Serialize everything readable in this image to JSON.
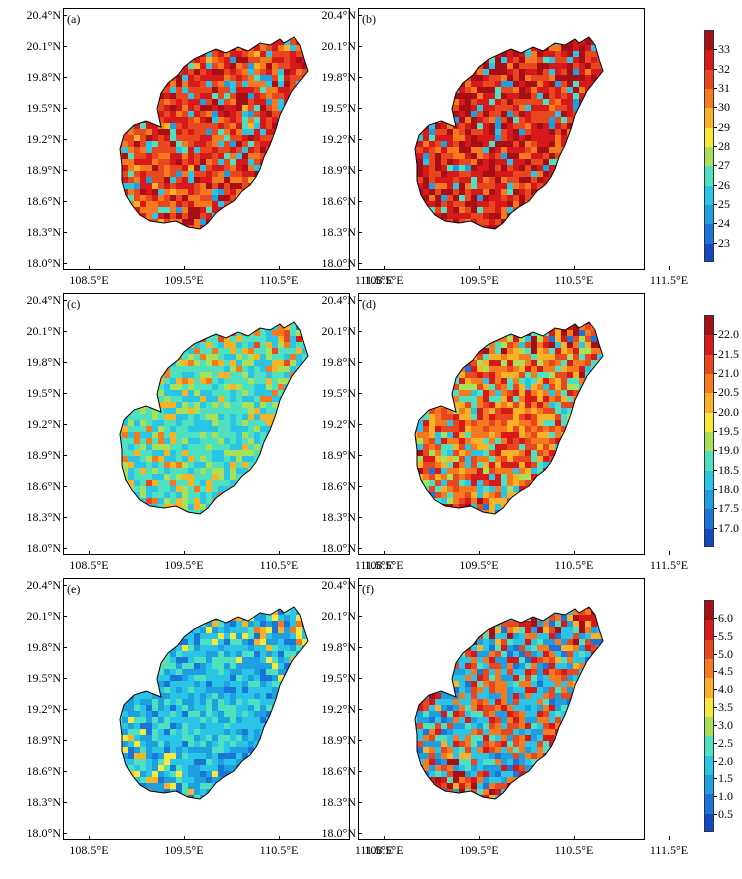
{
  "lat_labels": [
    "20.4°N",
    "20.1°N",
    "19.8°N",
    "19.5°N",
    "19.2°N",
    "18.9°N",
    "18.6°N",
    "18.3°N",
    "18.0°N"
  ],
  "lon_labels": [
    "108.5°E",
    "109.5°E",
    "110.5°E",
    "111.5°E"
  ],
  "panels": [
    {
      "label": "(a)",
      "row": 0,
      "col": 0,
      "style": "hot"
    },
    {
      "label": "(b)",
      "row": 0,
      "col": 1,
      "style": "hotter"
    },
    {
      "label": "(c)",
      "row": 1,
      "col": 0,
      "style": "mid"
    },
    {
      "label": "(d)",
      "row": 1,
      "col": 1,
      "style": "midwarm"
    },
    {
      "label": "(e)",
      "row": 2,
      "col": 0,
      "style": "cool"
    },
    {
      "label": "(f)",
      "row": 2,
      "col": 1,
      "style": "coolwarm"
    }
  ],
  "colorbars": [
    {
      "row": 0,
      "labels": [
        "33",
        "32",
        "31",
        "30",
        "29",
        "28",
        "27",
        "26",
        "25",
        "24",
        "23"
      ]
    },
    {
      "row": 1,
      "labels": [
        "22.0",
        "21.5",
        "21.0",
        "20.5",
        "20.0",
        "19.5",
        "19.0",
        "18.5",
        "18.0",
        "17.5",
        "17.0"
      ]
    },
    {
      "row": 2,
      "labels": [
        "6.0",
        "5.5",
        "5.0",
        "4.5",
        "4.0",
        "3.5",
        "3.0",
        "2.5",
        "2.0",
        "1.5",
        "1.0",
        "0.5"
      ]
    }
  ],
  "colors": {
    "scale": [
      "#a50f15",
      "#d7191c",
      "#e8471f",
      "#f4791f",
      "#f9b225",
      "#f7e83a",
      "#a8e05a",
      "#4fe0c0",
      "#29c4e6",
      "#1ea0e0",
      "#1b74d8",
      "#1449c4"
    ]
  }
}
